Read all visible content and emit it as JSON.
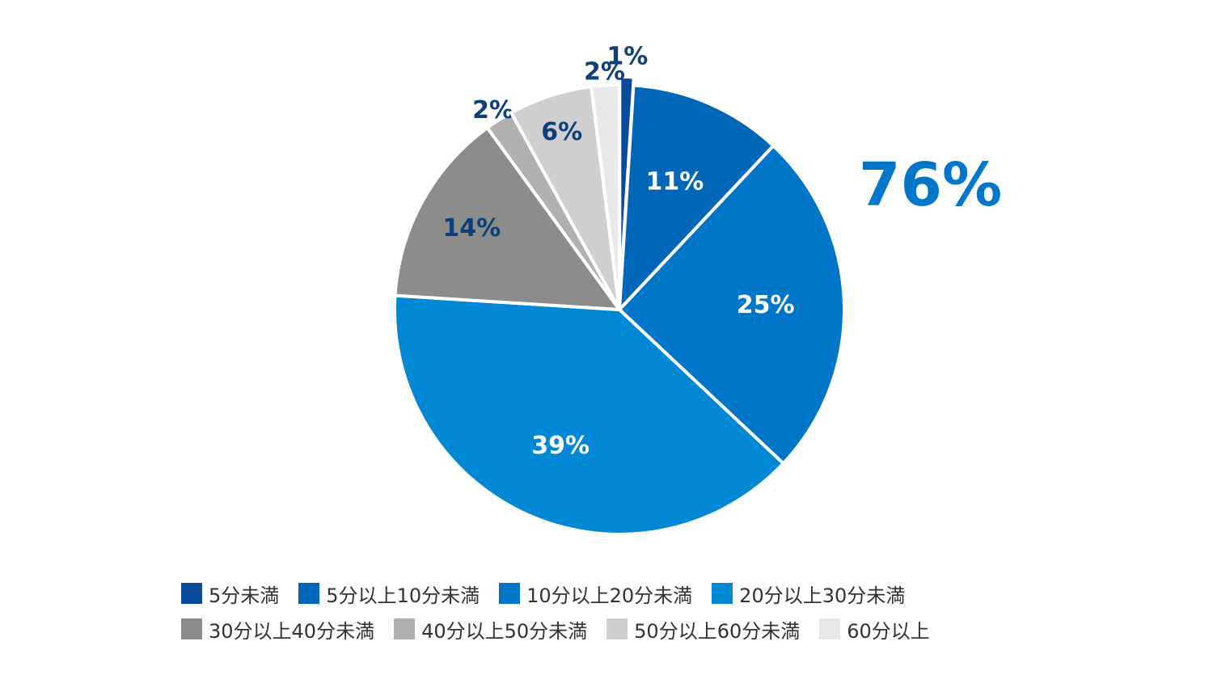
{
  "chart_data": {
    "type": "pie",
    "title": "",
    "categories": [
      "5分未満",
      "5分以上10分未満",
      "10分以上20分未満",
      "20分以上30分未満",
      "30分以上40分未満",
      "40分以上50分未満",
      "50分以上60分未満",
      "60分以上"
    ],
    "values": [
      1,
      11,
      25,
      39,
      14,
      2,
      6,
      2
    ],
    "labels": [
      "1%",
      "11%",
      "25%",
      "39%",
      "14%",
      "2%",
      "6%",
      "2%"
    ],
    "colors": [
      "#0a4a9a",
      "#0066b8",
      "#0076c8",
      "#0088d4",
      "#8c8c8c",
      "#b0b0b0",
      "#cfcfcf",
      "#e8e8ea"
    ],
    "label_colors": [
      "#0d3f78",
      "#ffffff",
      "#ffffff",
      "#ffffff",
      "#0d3f78",
      "#0d3f78",
      "#0d3f78",
      "#0d3f78"
    ],
    "legend_placement": "bottom",
    "callout": "76%"
  }
}
